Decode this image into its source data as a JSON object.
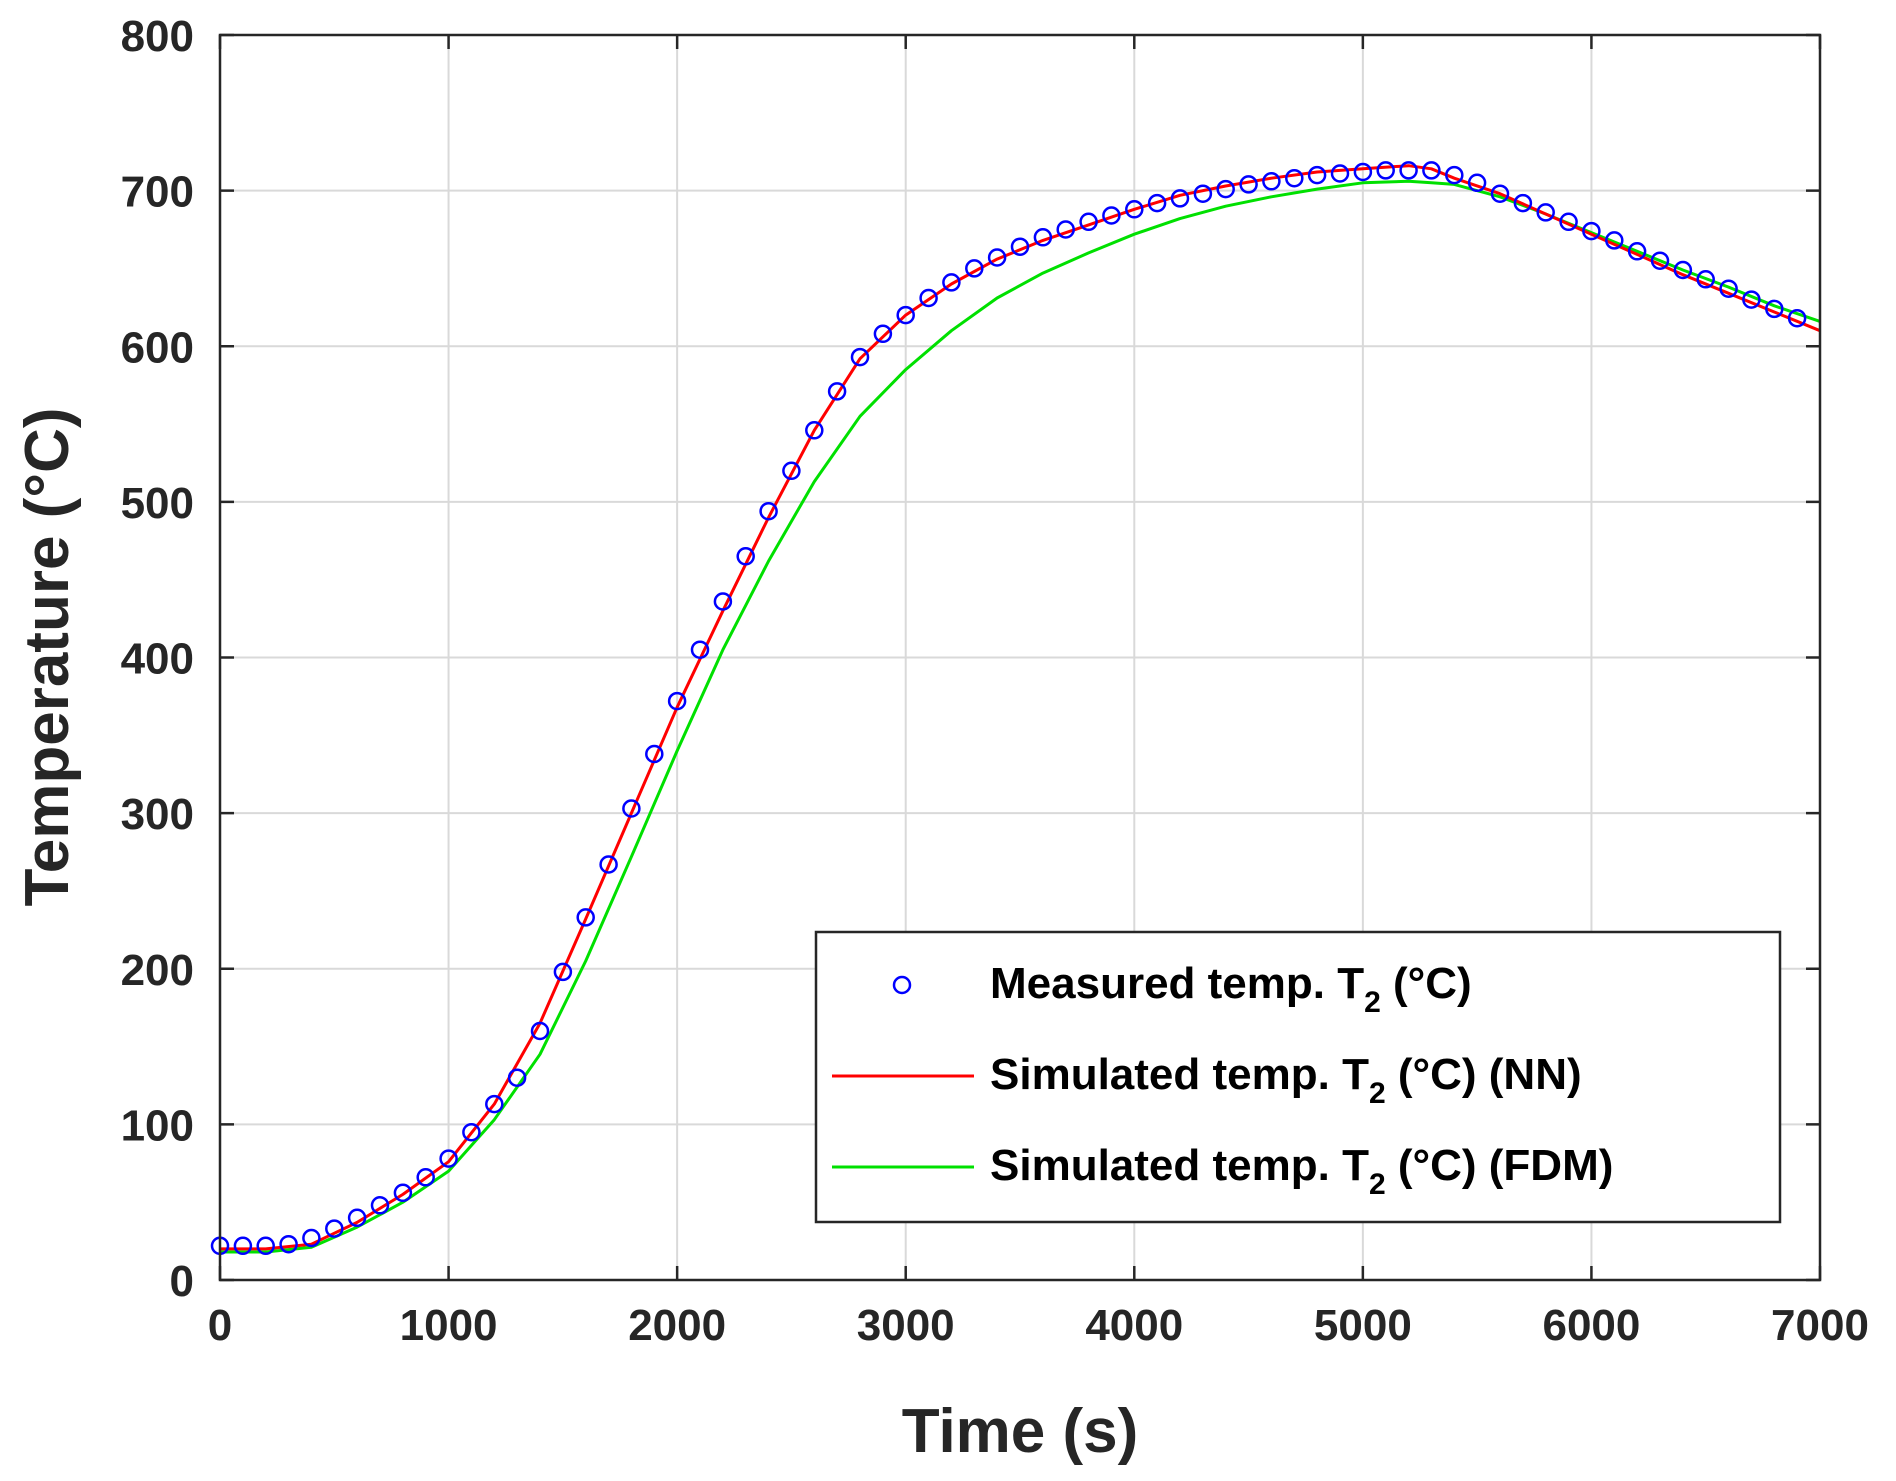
{
  "chart_data": {
    "type": "line",
    "title": "",
    "xlabel": "Time (s)",
    "ylabel": "Temperature (°C)",
    "xlim": [
      0,
      7000
    ],
    "ylim": [
      0,
      800
    ],
    "xticks": [
      0,
      1000,
      2000,
      3000,
      4000,
      5000,
      6000,
      7000
    ],
    "yticks": [
      0,
      100,
      200,
      300,
      400,
      500,
      600,
      700,
      800
    ],
    "grid": true,
    "legend_position": "bottom-right",
    "series": [
      {
        "name": "Measured temp. T2 (°C)",
        "legend_main": "Measured temp. T",
        "legend_sub": "2",
        "legend_tail": " (°C)",
        "style": "markers",
        "marker": "circle",
        "color": "#0000ff",
        "x": [
          0,
          100,
          200,
          300,
          400,
          500,
          600,
          700,
          800,
          900,
          1000,
          1100,
          1200,
          1300,
          1400,
          1500,
          1600,
          1700,
          1800,
          1900,
          2000,
          2100,
          2200,
          2300,
          2400,
          2500,
          2600,
          2700,
          2800,
          2900,
          3000,
          3100,
          3200,
          3300,
          3400,
          3500,
          3600,
          3700,
          3800,
          3900,
          4000,
          4100,
          4200,
          4300,
          4400,
          4500,
          4600,
          4700,
          4800,
          4900,
          5000,
          5100,
          5200,
          5300,
          5400,
          5500,
          5600,
          5700,
          5800,
          5900,
          6000,
          6100,
          6200,
          6300,
          6400,
          6500,
          6600,
          6700,
          6800,
          6900
        ],
        "y": [
          22,
          22,
          22,
          23,
          27,
          33,
          40,
          48,
          56,
          66,
          78,
          95,
          113,
          130,
          160,
          198,
          233,
          267,
          303,
          338,
          372,
          405,
          436,
          465,
          494,
          520,
          546,
          571,
          593,
          608,
          620,
          631,
          641,
          650,
          657,
          664,
          670,
          675,
          680,
          684,
          688,
          692,
          695,
          698,
          701,
          704,
          706,
          708,
          710,
          711,
          712,
          713,
          713,
          713,
          710,
          705,
          698,
          692,
          686,
          680,
          674,
          668,
          661,
          655,
          649,
          643,
          637,
          630,
          624,
          618
        ]
      },
      {
        "name": "Simulated temp. T2 (°C) (NN)",
        "legend_main": "Simulated temp. T",
        "legend_sub": "2",
        "legend_tail": " (°C) (NN)",
        "style": "line",
        "color": "#ff0000",
        "x": [
          0,
          200,
          400,
          600,
          800,
          1000,
          1200,
          1400,
          1600,
          1800,
          2000,
          2200,
          2400,
          2600,
          2800,
          3000,
          3200,
          3400,
          3600,
          3800,
          4000,
          4200,
          4400,
          4600,
          4800,
          5000,
          5200,
          5300,
          5400,
          5600,
          5800,
          6000,
          6200,
          6400,
          6600,
          6800,
          7000
        ],
        "y": [
          20,
          20,
          23,
          37,
          55,
          76,
          113,
          165,
          232,
          300,
          368,
          430,
          490,
          546,
          592,
          620,
          640,
          656,
          668,
          678,
          688,
          697,
          703,
          708,
          712,
          714,
          716,
          714,
          708,
          698,
          685,
          672,
          659,
          646,
          634,
          622,
          610
        ]
      },
      {
        "name": "Simulated temp. T2 (°C) (FDM)",
        "legend_main": "Simulated temp. T",
        "legend_sub": "2",
        "legend_tail": " (°C) (FDM)",
        "style": "line",
        "color": "#00e000",
        "x": [
          0,
          200,
          400,
          600,
          800,
          1000,
          1200,
          1400,
          1600,
          1800,
          2000,
          2200,
          2400,
          2600,
          2800,
          3000,
          3200,
          3400,
          3600,
          3800,
          4000,
          4200,
          4400,
          4600,
          4800,
          5000,
          5200,
          5300,
          5400,
          5600,
          5800,
          6000,
          6200,
          6400,
          6600,
          6800,
          7000
        ],
        "y": [
          18,
          18,
          21,
          34,
          50,
          70,
          103,
          145,
          205,
          272,
          340,
          405,
          462,
          513,
          555,
          585,
          610,
          631,
          647,
          660,
          672,
          682,
          690,
          696,
          701,
          705,
          706,
          705,
          704,
          696,
          685,
          673,
          661,
          649,
          638,
          626,
          616
        ]
      }
    ]
  }
}
